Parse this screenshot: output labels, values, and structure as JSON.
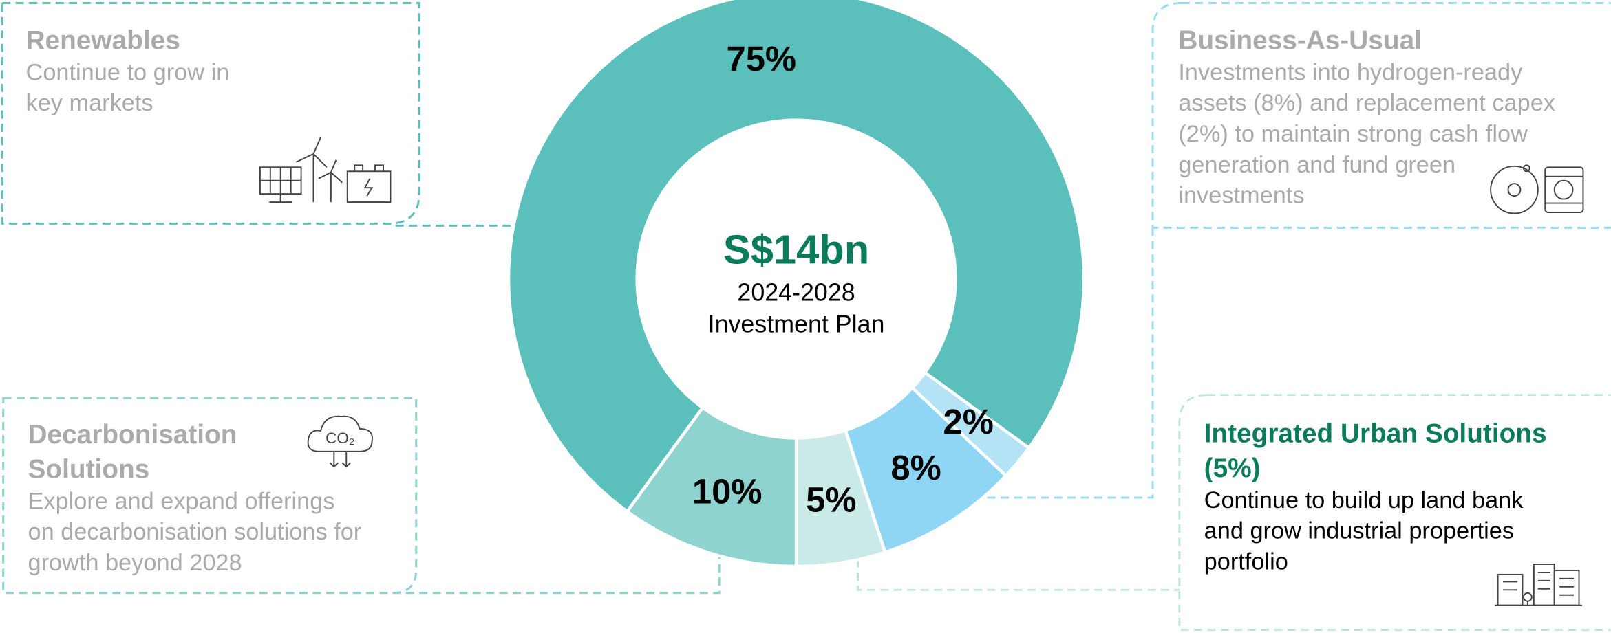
{
  "chart_data": {
    "type": "donut",
    "values": [
      5,
      8,
      2,
      75,
      10
    ],
    "value_labels": [
      "5%",
      "8%",
      "2%",
      "75%",
      "10%"
    ],
    "colors": [
      "#c9eae7",
      "#8fd6f5",
      "#b3e3f4",
      "#5bbfbb",
      "#8ed3cf"
    ],
    "center": {
      "title": "S$14bn",
      "lines": [
        "2024-2028",
        "Investment Plan"
      ]
    },
    "callouts": [
      {
        "title": [
          "Renewables"
        ],
        "lines": [
          "Continue to grow in",
          "key markets"
        ]
      },
      {
        "title": [
          "Business-As-Usual"
        ],
        "lines": [
          "Investments into hydrogen-ready",
          "assets (8%) and replacement capex",
          "(2%) to maintain strong cash flow",
          "generation and fund green",
          "investments"
        ]
      },
      {
        "title": [
          "Decarbonisation",
          "Solutions"
        ],
        "lines": [
          "Explore and expand offerings",
          "on decarbonisation solutions for",
          "growth beyond 2028"
        ]
      },
      {
        "title": [
          "Integrated Urban Solutions",
          "(5%)"
        ],
        "lines": [
          "Continue to build up land bank",
          "and grow industrial properties",
          "portfolio"
        ]
      }
    ]
  }
}
